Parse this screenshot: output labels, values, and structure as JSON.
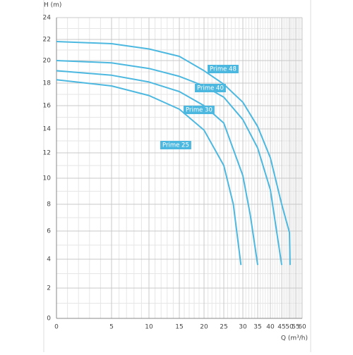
{
  "chart_data": {
    "type": "line",
    "x_label": "Q (m³/h)",
    "y_label": "H (m)",
    "xlim": [
      0,
      60
    ],
    "xticks": [
      0,
      5,
      10,
      15,
      20,
      25,
      30,
      35,
      40,
      45,
      50,
      55,
      60
    ],
    "ylim": [
      0,
      24
    ],
    "yticks": [
      2,
      4,
      6,
      8,
      10,
      12,
      14,
      16,
      18,
      20,
      22,
      24
    ],
    "x_origin_label": "0",
    "grid": true,
    "color": "#4cb8e0",
    "series": [
      {
        "name": "Prime 48",
        "x": [
          0,
          5,
          10,
          15,
          20,
          25,
          30,
          35,
          40,
          45,
          50,
          50.5
        ],
        "values": [
          21.8,
          21.6,
          21.1,
          20.4,
          19.1,
          17.9,
          16.3,
          14.2,
          11.6,
          8,
          5.9,
          3.6
        ]
      },
      {
        "name": "Prime 40",
        "x": [
          0,
          5,
          10,
          15,
          20,
          25,
          30,
          35,
          40,
          45
        ],
        "values": [
          20.0,
          19.8,
          19.3,
          18.6,
          17.75,
          16.75,
          14.8,
          12.4,
          9.1,
          3.6
        ]
      },
      {
        "name": "Prime 30",
        "x": [
          0,
          5,
          10,
          15,
          20,
          25,
          30,
          32.5,
          35
        ],
        "values": [
          19.1,
          18.7,
          18.1,
          17.25,
          16,
          14.5,
          10.2,
          7.2,
          3.6
        ]
      },
      {
        "name": "Prime 25",
        "x": [
          0,
          5,
          10,
          15,
          20,
          25,
          27.5,
          29.5
        ],
        "values": [
          18.3,
          17.75,
          16.9,
          15.7,
          13.9,
          11.0,
          8,
          3.6
        ]
      }
    ]
  }
}
